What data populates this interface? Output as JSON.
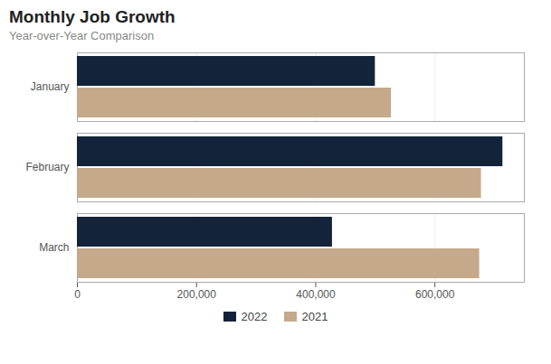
{
  "chart_data": {
    "type": "bar",
    "orientation": "horizontal",
    "title": "Monthly Job Growth",
    "subtitle": "Year-over-Year Comparison",
    "categories": [
      "January",
      "February",
      "March"
    ],
    "series": [
      {
        "name": "2022",
        "color": "#12233a",
        "values": [
          500000,
          714000,
          428000
        ]
      },
      {
        "name": "2021",
        "color": "#c4a98a",
        "values": [
          527000,
          678000,
          675000
        ]
      }
    ],
    "xlim": [
      0,
      750000
    ],
    "xticks": [
      0,
      {
        "value": 200000,
        "label": "200,000"
      },
      {
        "value": 400000,
        "label": "400,000"
      },
      {
        "value": 600000,
        "label": "600,000"
      }
    ],
    "grid": true,
    "legend": "bottom"
  }
}
